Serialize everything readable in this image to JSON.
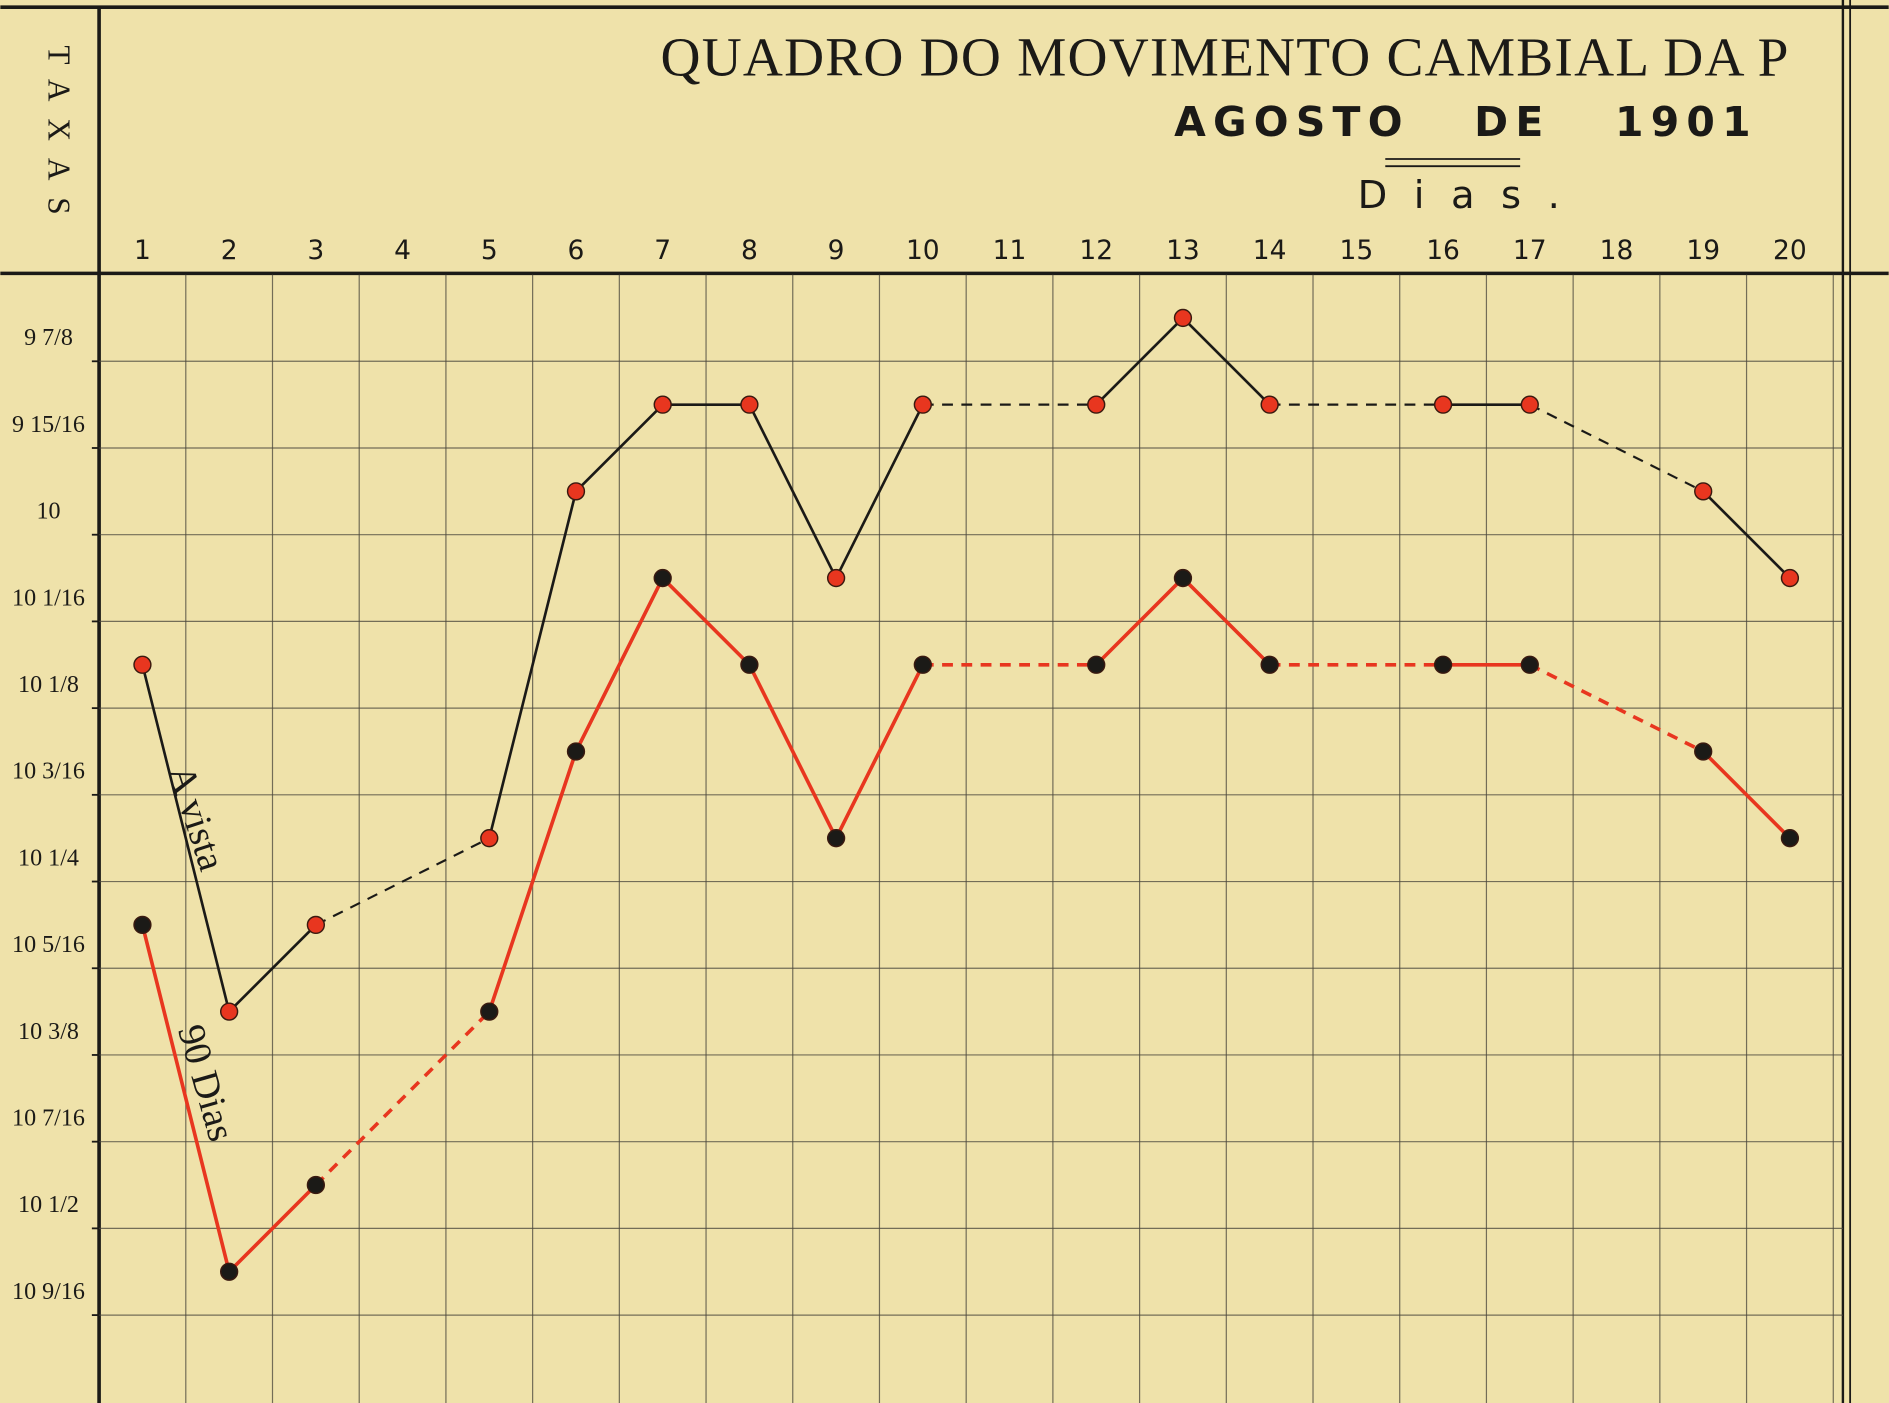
{
  "chart_data": {
    "type": "line",
    "title": "QUADRO DO MOVIMENTO CAMBIAL DA P",
    "subtitle": "AGOSTO   DE   1901",
    "x_label": "Dias.",
    "y_label": "TAXAS",
    "categories": [
      "1",
      "2",
      "3",
      "4",
      "5",
      "6",
      "7",
      "8",
      "9",
      "10",
      "11",
      "12",
      "13",
      "14",
      "15",
      "16",
      "17",
      "18",
      "19",
      "20"
    ],
    "series": [
      {
        "name": "A vista",
        "color": "#1b1a17",
        "marker_color": "#e8361f",
        "values": [
          10.09375,
          10.34375,
          10.28125,
          null,
          10.21875,
          9.96875,
          9.90625,
          9.90625,
          10.03125,
          9.90625,
          null,
          9.90625,
          9.84375,
          9.90625,
          null,
          9.90625,
          9.90625,
          null,
          9.96875,
          10.03125
        ]
      },
      {
        "name": "90 Dias",
        "color": "#e8361f",
        "marker_color": "#1b1a17",
        "values": [
          10.28125,
          10.53125,
          10.46875,
          null,
          10.34375,
          10.15625,
          10.03125,
          10.09375,
          10.21875,
          10.09375,
          null,
          10.09375,
          10.03125,
          10.09375,
          null,
          10.09375,
          10.09375,
          null,
          10.15625,
          10.21875
        ]
      }
    ],
    "ylim": [
      9.8125,
      10.625
    ],
    "y_inverted": true,
    "yticks": [
      {
        "value": 9.875,
        "label": "9 7/8"
      },
      {
        "value": 9.9375,
        "label": "9 15/16"
      },
      {
        "value": 10,
        "label": "10"
      },
      {
        "value": 10.0625,
        "label": "10 1/16"
      },
      {
        "value": 10.125,
        "label": "10 1/8"
      },
      {
        "value": 10.1875,
        "label": "10 3/16"
      },
      {
        "value": 10.25,
        "label": "10 1/4"
      },
      {
        "value": 10.3125,
        "label": "10 5/16"
      },
      {
        "value": 10.375,
        "label": "10 3/8"
      },
      {
        "value": 10.4375,
        "label": "10 7/16"
      },
      {
        "value": 10.5,
        "label": "10 1/2"
      },
      {
        "value": 10.5625,
        "label": "10 9/16"
      }
    ],
    "grid": true,
    "gap_style": "dashed"
  }
}
